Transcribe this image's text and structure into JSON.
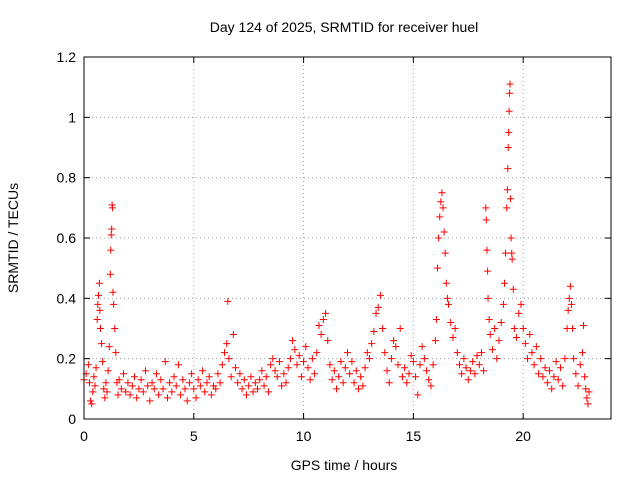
{
  "chart_data": {
    "type": "scatter",
    "title": "Day 124 of 2025, SRMTID for receiver huel",
    "xlabel": "GPS time / hours",
    "ylabel": "SRMTID / TECUs",
    "xlim": [
      0,
      24
    ],
    "ylim": [
      0,
      1.2
    ],
    "xticks": [
      0,
      5,
      10,
      15,
      20
    ],
    "xtick_labels": [
      "0",
      "5",
      "10",
      "15",
      "20"
    ],
    "yticks": [
      0,
      0.2,
      0.4,
      0.6,
      0.8,
      1.0,
      1.2
    ],
    "ytick_labels": [
      "0",
      "0.2",
      "0.4",
      "0.6",
      "0.8",
      "1",
      "1.2"
    ],
    "grid": true,
    "marker": "+",
    "series_color": "#ff0000",
    "series": [
      {
        "name": "SRMTID",
        "points": [
          [
            0.0,
            0.13
          ],
          [
            0.1,
            0.15
          ],
          [
            0.2,
            0.18
          ],
          [
            0.25,
            0.12
          ],
          [
            0.3,
            0.06
          ],
          [
            0.35,
            0.05
          ],
          [
            0.4,
            0.09
          ],
          [
            0.45,
            0.14
          ],
          [
            0.5,
            0.11
          ],
          [
            0.55,
            0.17
          ],
          [
            0.6,
            0.33
          ],
          [
            0.63,
            0.38
          ],
          [
            0.66,
            0.41
          ],
          [
            0.7,
            0.45
          ],
          [
            0.72,
            0.36
          ],
          [
            0.75,
            0.3
          ],
          [
            0.8,
            0.25
          ],
          [
            0.85,
            0.19
          ],
          [
            0.9,
            0.1
          ],
          [
            0.95,
            0.07
          ],
          [
            1.0,
            0.12
          ],
          [
            1.05,
            0.09
          ],
          [
            1.1,
            0.16
          ],
          [
            1.15,
            0.24
          ],
          [
            1.2,
            0.48
          ],
          [
            1.22,
            0.56
          ],
          [
            1.24,
            0.61
          ],
          [
            1.26,
            0.63
          ],
          [
            1.28,
            0.71
          ],
          [
            1.3,
            0.7
          ],
          [
            1.32,
            0.42
          ],
          [
            1.35,
            0.38
          ],
          [
            1.4,
            0.3
          ],
          [
            1.45,
            0.22
          ],
          [
            1.5,
            0.12
          ],
          [
            1.55,
            0.08
          ],
          [
            1.6,
            0.13
          ],
          [
            1.7,
            0.1
          ],
          [
            1.8,
            0.15
          ],
          [
            1.9,
            0.09
          ],
          [
            2.0,
            0.12
          ],
          [
            2.1,
            0.08
          ],
          [
            2.2,
            0.11
          ],
          [
            2.3,
            0.14
          ],
          [
            2.4,
            0.07
          ],
          [
            2.5,
            0.1
          ],
          [
            2.6,
            0.13
          ],
          [
            2.7,
            0.09
          ],
          [
            2.8,
            0.16
          ],
          [
            2.9,
            0.11
          ],
          [
            3.0,
            0.06
          ],
          [
            3.1,
            0.12
          ],
          [
            3.2,
            0.1
          ],
          [
            3.3,
            0.15
          ],
          [
            3.4,
            0.08
          ],
          [
            3.5,
            0.13
          ],
          [
            3.6,
            0.1
          ],
          [
            3.7,
            0.19
          ],
          [
            3.8,
            0.07
          ],
          [
            3.9,
            0.12
          ],
          [
            4.0,
            0.09
          ],
          [
            4.1,
            0.14
          ],
          [
            4.2,
            0.11
          ],
          [
            4.3,
            0.18
          ],
          [
            4.4,
            0.08
          ],
          [
            4.5,
            0.13
          ],
          [
            4.6,
            0.1
          ],
          [
            4.7,
            0.06
          ],
          [
            4.8,
            0.12
          ],
          [
            4.9,
            0.15
          ],
          [
            5.0,
            0.1
          ],
          [
            5.1,
            0.07
          ],
          [
            5.2,
            0.13
          ],
          [
            5.3,
            0.11
          ],
          [
            5.4,
            0.16
          ],
          [
            5.5,
            0.09
          ],
          [
            5.6,
            0.12
          ],
          [
            5.7,
            0.14
          ],
          [
            5.8,
            0.08
          ],
          [
            5.9,
            0.11
          ],
          [
            6.0,
            0.1
          ],
          [
            6.1,
            0.15
          ],
          [
            6.2,
            0.12
          ],
          [
            6.3,
            0.18
          ],
          [
            6.4,
            0.22
          ],
          [
            6.5,
            0.25
          ],
          [
            6.55,
            0.39
          ],
          [
            6.6,
            0.2
          ],
          [
            6.7,
            0.14
          ],
          [
            6.8,
            0.28
          ],
          [
            6.9,
            0.17
          ],
          [
            7.0,
            0.12
          ],
          [
            7.1,
            0.15
          ],
          [
            7.2,
            0.1
          ],
          [
            7.3,
            0.13
          ],
          [
            7.4,
            0.08
          ],
          [
            7.5,
            0.11
          ],
          [
            7.6,
            0.14
          ],
          [
            7.7,
            0.09
          ],
          [
            7.8,
            0.12
          ],
          [
            7.9,
            0.1
          ],
          [
            8.0,
            0.13
          ],
          [
            8.1,
            0.16
          ],
          [
            8.2,
            0.11
          ],
          [
            8.3,
            0.14
          ],
          [
            8.4,
            0.09
          ],
          [
            8.5,
            0.18
          ],
          [
            8.6,
            0.2
          ],
          [
            8.7,
            0.16
          ],
          [
            8.8,
            0.14
          ],
          [
            8.9,
            0.19
          ],
          [
            9.0,
            0.11
          ],
          [
            9.1,
            0.15
          ],
          [
            9.2,
            0.12
          ],
          [
            9.3,
            0.17
          ],
          [
            9.4,
            0.2
          ],
          [
            9.5,
            0.26
          ],
          [
            9.6,
            0.23
          ],
          [
            9.7,
            0.18
          ],
          [
            9.8,
            0.21
          ],
          [
            9.9,
            0.14
          ],
          [
            10.0,
            0.19
          ],
          [
            10.1,
            0.24
          ],
          [
            10.2,
            0.17
          ],
          [
            10.3,
            0.13
          ],
          [
            10.4,
            0.2
          ],
          [
            10.5,
            0.15
          ],
          [
            10.6,
            0.22
          ],
          [
            10.7,
            0.31
          ],
          [
            10.8,
            0.28
          ],
          [
            10.9,
            0.33
          ],
          [
            11.0,
            0.35
          ],
          [
            11.1,
            0.26
          ],
          [
            11.2,
            0.18
          ],
          [
            11.3,
            0.13
          ],
          [
            11.4,
            0.16
          ],
          [
            11.5,
            0.1
          ],
          [
            11.6,
            0.14
          ],
          [
            11.7,
            0.19
          ],
          [
            11.8,
            0.12
          ],
          [
            11.9,
            0.17
          ],
          [
            12.0,
            0.22
          ],
          [
            12.1,
            0.15
          ],
          [
            12.2,
            0.19
          ],
          [
            12.3,
            0.12
          ],
          [
            12.4,
            0.16
          ],
          [
            12.5,
            0.1
          ],
          [
            12.6,
            0.14
          ],
          [
            12.7,
            0.11
          ],
          [
            12.8,
            0.17
          ],
          [
            12.9,
            0.22
          ],
          [
            13.0,
            0.2
          ],
          [
            13.1,
            0.25
          ],
          [
            13.2,
            0.29
          ],
          [
            13.3,
            0.35
          ],
          [
            13.4,
            0.37
          ],
          [
            13.5,
            0.41
          ],
          [
            13.6,
            0.3
          ],
          [
            13.7,
            0.22
          ],
          [
            13.8,
            0.16
          ],
          [
            13.9,
            0.12
          ],
          [
            14.0,
            0.2
          ],
          [
            14.1,
            0.26
          ],
          [
            14.2,
            0.24
          ],
          [
            14.3,
            0.18
          ],
          [
            14.4,
            0.3
          ],
          [
            14.5,
            0.14
          ],
          [
            14.6,
            0.17
          ],
          [
            14.7,
            0.12
          ],
          [
            14.8,
            0.15
          ],
          [
            14.9,
            0.21
          ],
          [
            15.0,
            0.19
          ],
          [
            15.1,
            0.14
          ],
          [
            15.2,
            0.08
          ],
          [
            15.3,
            0.18
          ],
          [
            15.4,
            0.24
          ],
          [
            15.5,
            0.2
          ],
          [
            15.6,
            0.16
          ],
          [
            15.7,
            0.13
          ],
          [
            15.8,
            0.11
          ],
          [
            15.9,
            0.18
          ],
          [
            16.0,
            0.26
          ],
          [
            16.05,
            0.33
          ],
          [
            16.1,
            0.5
          ],
          [
            16.15,
            0.6
          ],
          [
            16.2,
            0.67
          ],
          [
            16.25,
            0.72
          ],
          [
            16.3,
            0.75
          ],
          [
            16.35,
            0.7
          ],
          [
            16.4,
            0.62
          ],
          [
            16.45,
            0.55
          ],
          [
            16.5,
            0.45
          ],
          [
            16.55,
            0.4
          ],
          [
            16.6,
            0.38
          ],
          [
            16.7,
            0.32
          ],
          [
            16.8,
            0.27
          ],
          [
            16.9,
            0.3
          ],
          [
            17.0,
            0.22
          ],
          [
            17.1,
            0.18
          ],
          [
            17.2,
            0.15
          ],
          [
            17.3,
            0.2
          ],
          [
            17.4,
            0.17
          ],
          [
            17.5,
            0.13
          ],
          [
            17.6,
            0.16
          ],
          [
            17.7,
            0.19
          ],
          [
            17.8,
            0.15
          ],
          [
            17.9,
            0.21
          ],
          [
            18.0,
            0.18
          ],
          [
            18.1,
            0.22
          ],
          [
            18.2,
            0.16
          ],
          [
            18.3,
            0.7
          ],
          [
            18.32,
            0.66
          ],
          [
            18.35,
            0.56
          ],
          [
            18.38,
            0.49
          ],
          [
            18.4,
            0.4
          ],
          [
            18.45,
            0.33
          ],
          [
            18.5,
            0.28
          ],
          [
            18.6,
            0.23
          ],
          [
            18.7,
            0.3
          ],
          [
            18.8,
            0.2
          ],
          [
            18.9,
            0.26
          ],
          [
            19.0,
            0.32
          ],
          [
            19.1,
            0.38
          ],
          [
            19.15,
            0.45
          ],
          [
            19.2,
            0.55
          ],
          [
            19.25,
            0.7
          ],
          [
            19.28,
            0.76
          ],
          [
            19.3,
            0.83
          ],
          [
            19.32,
            0.9
          ],
          [
            19.34,
            0.95
          ],
          [
            19.36,
            1.02
          ],
          [
            19.38,
            1.08
          ],
          [
            19.4,
            1.11
          ],
          [
            19.42,
            0.73
          ],
          [
            19.45,
            0.6
          ],
          [
            19.48,
            0.55
          ],
          [
            19.5,
            0.53
          ],
          [
            19.55,
            0.43
          ],
          [
            19.6,
            0.3
          ],
          [
            19.7,
            0.27
          ],
          [
            19.8,
            0.35
          ],
          [
            19.9,
            0.38
          ],
          [
            20.0,
            0.3
          ],
          [
            20.1,
            0.25
          ],
          [
            20.2,
            0.2
          ],
          [
            20.3,
            0.28
          ],
          [
            20.4,
            0.22
          ],
          [
            20.5,
            0.18
          ],
          [
            20.6,
            0.24
          ],
          [
            20.7,
            0.15
          ],
          [
            20.8,
            0.2
          ],
          [
            20.9,
            0.14
          ],
          [
            21.0,
            0.17
          ],
          [
            21.1,
            0.12
          ],
          [
            21.2,
            0.16
          ],
          [
            21.3,
            0.1
          ],
          [
            21.4,
            0.14
          ],
          [
            21.5,
            0.19
          ],
          [
            21.6,
            0.13
          ],
          [
            21.7,
            0.17
          ],
          [
            21.8,
            0.11
          ],
          [
            21.9,
            0.2
          ],
          [
            22.0,
            0.3
          ],
          [
            22.05,
            0.36
          ],
          [
            22.1,
            0.4
          ],
          [
            22.15,
            0.44
          ],
          [
            22.2,
            0.38
          ],
          [
            22.25,
            0.3
          ],
          [
            22.3,
            0.2
          ],
          [
            22.4,
            0.15
          ],
          [
            22.5,
            0.11
          ],
          [
            22.6,
            0.18
          ],
          [
            22.7,
            0.22
          ],
          [
            22.75,
            0.31
          ],
          [
            22.8,
            0.14
          ],
          [
            22.85,
            0.1
          ],
          [
            22.9,
            0.07
          ],
          [
            22.95,
            0.05
          ],
          [
            23.0,
            0.09
          ]
        ]
      }
    ]
  }
}
